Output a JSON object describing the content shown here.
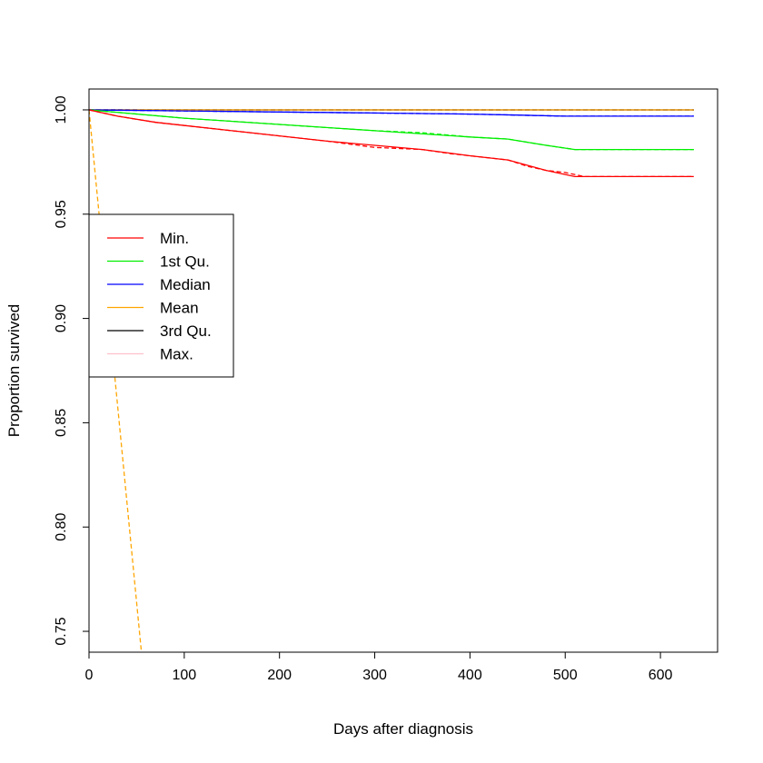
{
  "chart_data": {
    "type": "line",
    "title": "",
    "xlabel": "Days after diagnosis",
    "ylabel": "Proportion survived",
    "xlim": [
      0,
      660
    ],
    "ylim": [
      0.74,
      1.01
    ],
    "x_ticks": [
      0,
      100,
      200,
      300,
      400,
      500,
      600
    ],
    "y_ticks": [
      0.75,
      0.8,
      0.85,
      0.9,
      0.95,
      1.0
    ],
    "x_tick_labels": [
      "0",
      "100",
      "200",
      "300",
      "400",
      "500",
      "600"
    ],
    "y_tick_labels": [
      "0.75",
      "0.80",
      "0.85",
      "0.90",
      "0.95",
      "1.00"
    ],
    "grid": false,
    "legend_position": "left",
    "legend": [
      {
        "label": "Min.",
        "color": "#ff0000"
      },
      {
        "label": "1st Qu.",
        "color": "#00ee00"
      },
      {
        "label": "Median",
        "color": "#0000ff"
      },
      {
        "label": "Mean",
        "color": "#ffa500"
      },
      {
        "label": "3rd Qu.",
        "color": "#000000"
      },
      {
        "label": "Max.",
        "color": "#ffc0cb"
      }
    ],
    "series": [
      {
        "color": "#ff0000",
        "solid": {
          "x": [
            0,
            30,
            70,
            150,
            250,
            300,
            350,
            400,
            440,
            480,
            510,
            635
          ],
          "y": [
            1.0,
            0.997,
            0.994,
            0.99,
            0.985,
            0.983,
            0.981,
            0.978,
            0.976,
            0.971,
            0.968,
            0.968
          ]
        },
        "dashed": {
          "x": [
            0,
            30,
            70,
            150,
            250,
            300,
            350,
            380,
            400,
            440,
            460,
            480,
            500,
            520,
            635
          ],
          "y": [
            1.0,
            0.997,
            0.994,
            0.99,
            0.985,
            0.982,
            0.981,
            0.979,
            0.978,
            0.976,
            0.973,
            0.971,
            0.97,
            0.968,
            0.968
          ]
        }
      },
      {
        "color": "#00ee00",
        "solid": {
          "x": [
            0,
            100,
            200,
            300,
            400,
            440,
            480,
            510,
            635
          ],
          "y": [
            1.0,
            0.996,
            0.993,
            0.99,
            0.987,
            0.986,
            0.983,
            0.981,
            0.981
          ]
        },
        "dashed": {
          "x": [
            0,
            100,
            200,
            300,
            350,
            400,
            440,
            480,
            510,
            635
          ],
          "y": [
            1.0,
            0.996,
            0.993,
            0.99,
            0.989,
            0.987,
            0.986,
            0.983,
            0.981,
            0.981
          ]
        }
      },
      {
        "color": "#0000ff",
        "solid": {
          "x": [
            0,
            100,
            200,
            300,
            400,
            450,
            500,
            635
          ],
          "y": [
            1.0,
            0.9995,
            0.999,
            0.9985,
            0.998,
            0.9975,
            0.997,
            0.997
          ]
        },
        "dashed": {
          "x": [
            0,
            200,
            400,
            500,
            635
          ],
          "y": [
            1.0,
            0.999,
            0.998,
            0.997,
            0.997
          ]
        }
      },
      {
        "color": "#ffa500",
        "solid": {
          "x": [
            0,
            635
          ],
          "y": [
            1.0,
            1.0
          ]
        },
        "dashed": {
          "x": [
            0,
            55
          ],
          "y": [
            1.0,
            0.74
          ]
        }
      },
      {
        "color": "#000000",
        "solid": {
          "x": [
            0,
            635
          ],
          "y": [
            1.0,
            1.0
          ]
        },
        "dashed": {
          "x": [
            0,
            635
          ],
          "y": [
            1.0,
            1.0
          ]
        }
      },
      {
        "color": "#ffc0cb",
        "solid": {
          "x": [
            0,
            635
          ],
          "y": [
            1.0,
            1.0
          ]
        },
        "dashed": {
          "x": [
            0,
            635
          ],
          "y": [
            1.0,
            1.0
          ]
        }
      }
    ]
  }
}
